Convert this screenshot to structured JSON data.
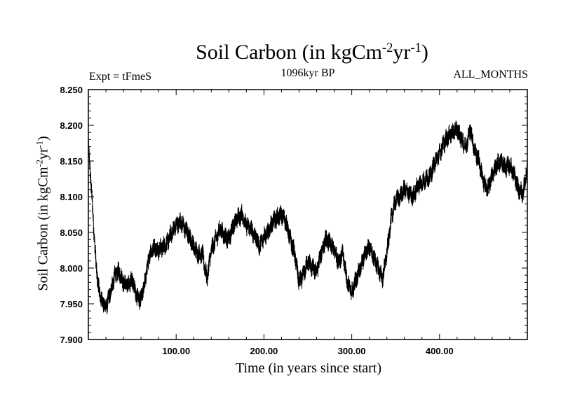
{
  "chart_data": {
    "type": "line",
    "title": "Soil Carbon (in kgCm",
    "title_exp1": "-2",
    "title_mid": "yr",
    "title_exp2": "-1",
    "title_end": ")",
    "left_label": "Expt = tFmeS",
    "center_label": "1096kyr BP",
    "right_label": "ALL_MONTHS",
    "xlabel": "Time (in years since start)",
    "ylabel": "Soil Carbon (in kgCm",
    "ylabel_exp1": "-2",
    "ylabel_mid": "yr",
    "ylabel_exp2": "-1",
    "ylabel_end": ")",
    "xlim": [
      0,
      500
    ],
    "ylim": [
      7.9,
      8.25
    ],
    "xticks": [
      {
        "value": 100,
        "label": "100.00"
      },
      {
        "value": 200,
        "label": "200.00"
      },
      {
        "value": 300,
        "label": "300.00"
      },
      {
        "value": 400,
        "label": "400.00"
      }
    ],
    "yticks": [
      {
        "value": 7.9,
        "label": "7.900"
      },
      {
        "value": 7.95,
        "label": "7.950"
      },
      {
        "value": 8.0,
        "label": "8.000"
      },
      {
        "value": 8.05,
        "label": "8.050"
      },
      {
        "value": 8.1,
        "label": "8.100"
      },
      {
        "value": 8.15,
        "label": "8.150"
      },
      {
        "value": 8.2,
        "label": "8.200"
      },
      {
        "value": 8.25,
        "label": "8.250"
      }
    ],
    "series": [
      {
        "name": "Soil Carbon",
        "noise_amplitude": 0.012,
        "x": [
          0,
          3,
          6,
          9,
          12,
          15,
          20,
          25,
          30,
          35,
          40,
          45,
          50,
          55,
          60,
          65,
          70,
          75,
          80,
          85,
          90,
          95,
          100,
          105,
          110,
          115,
          120,
          125,
          130,
          135,
          140,
          145,
          150,
          155,
          160,
          165,
          170,
          175,
          180,
          185,
          190,
          195,
          200,
          205,
          210,
          215,
          220,
          225,
          230,
          235,
          240,
          245,
          250,
          255,
          260,
          265,
          270,
          275,
          280,
          285,
          290,
          295,
          300,
          305,
          310,
          315,
          320,
          325,
          330,
          335,
          340,
          345,
          350,
          355,
          360,
          365,
          370,
          375,
          380,
          385,
          390,
          395,
          400,
          405,
          410,
          415,
          420,
          425,
          430,
          435,
          440,
          445,
          450,
          455,
          460,
          465,
          470,
          475,
          480,
          485,
          490,
          495,
          500
        ],
        "values": [
          8.17,
          8.12,
          8.06,
          8.0,
          7.97,
          7.955,
          7.945,
          7.965,
          7.99,
          7.995,
          7.98,
          7.975,
          7.985,
          7.96,
          7.955,
          7.985,
          8.02,
          8.03,
          8.025,
          8.03,
          8.035,
          8.05,
          8.06,
          8.065,
          8.055,
          8.045,
          8.03,
          8.02,
          8.02,
          7.985,
          8.025,
          8.04,
          8.055,
          8.045,
          8.04,
          8.06,
          8.07,
          8.075,
          8.06,
          8.055,
          8.045,
          8.03,
          8.045,
          8.05,
          8.065,
          8.07,
          8.075,
          8.065,
          8.04,
          8.02,
          7.98,
          7.99,
          8.01,
          8.0,
          7.995,
          8.02,
          8.04,
          8.035,
          8.025,
          8.01,
          8.02,
          7.98,
          7.965,
          7.985,
          8.0,
          8.02,
          8.03,
          8.015,
          8.0,
          7.985,
          8.02,
          8.07,
          8.095,
          8.1,
          8.11,
          8.105,
          8.1,
          8.115,
          8.12,
          8.125,
          8.13,
          8.15,
          8.16,
          8.175,
          8.185,
          8.19,
          8.195,
          8.18,
          8.17,
          8.195,
          8.165,
          8.15,
          8.12,
          8.11,
          8.13,
          8.145,
          8.15,
          8.14,
          8.145,
          8.13,
          8.11,
          8.105,
          8.14
        ]
      }
    ]
  }
}
